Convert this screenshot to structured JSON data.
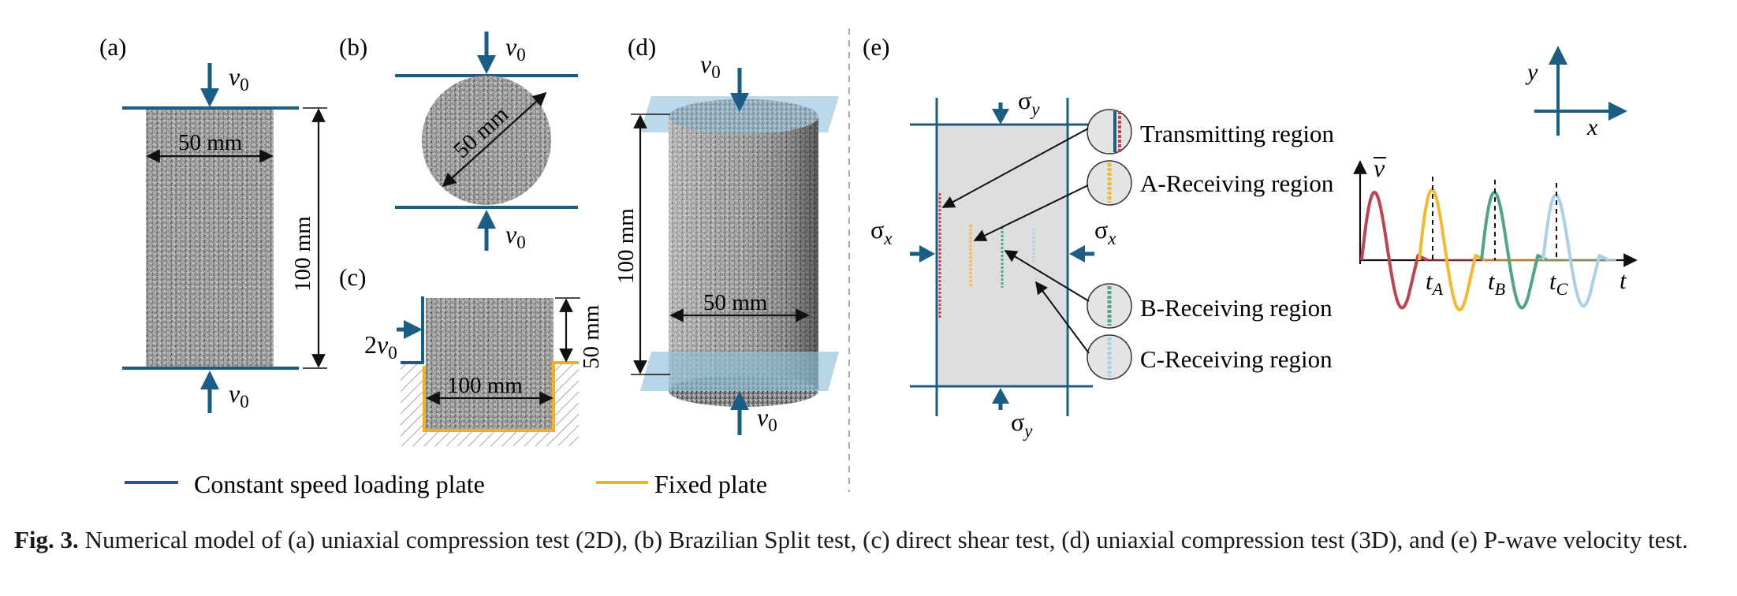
{
  "panels": {
    "a": {
      "label": "(a)",
      "top_velocity": "v",
      "top_velocity_sub": "0",
      "bottom_velocity": "v",
      "bottom_velocity_sub": "0",
      "width_dim": "50 mm",
      "height_dim": "100 mm"
    },
    "b": {
      "label": "(b)",
      "top_velocity": "v",
      "top_velocity_sub": "0",
      "bottom_velocity": "v",
      "bottom_velocity_sub": "0",
      "diameter_dim": "50 mm"
    },
    "c": {
      "label": "(c)",
      "side_velocity_coef": "2",
      "side_velocity": "v",
      "side_velocity_sub": "0",
      "width_dim": "100 mm",
      "height_dim": "50 mm"
    },
    "d": {
      "label": "(d)",
      "top_velocity": "v",
      "top_velocity_sub": "0",
      "bottom_velocity": "v",
      "bottom_velocity_sub": "0",
      "height_dim": "100 mm",
      "diameter_dim": "50 mm"
    },
    "e": {
      "label": "(e)",
      "sigma": "σ",
      "sigma_y_sub": "y",
      "sigma_x_sub": "x",
      "regions": [
        "Transmitting region",
        "A-Receiving region",
        "B-Receiving region",
        "C-Receiving region"
      ],
      "axis_x": "x",
      "axis_y": "y",
      "plot_y_label": "v",
      "plot_x_label": "t",
      "t_labels": [
        {
          "main": "t",
          "sub": "A"
        },
        {
          "main": "t",
          "sub": "B"
        },
        {
          "main": "t",
          "sub": "C"
        }
      ]
    }
  },
  "legend": {
    "loading_plate": "Constant speed loading plate",
    "fixed_plate": "Fixed plate"
  },
  "caption": {
    "label": "Fig. 3.",
    "text": " Numerical model of (a) uniaxial compression test (2D), (b) Brazilian Split test, (c) direct shear test, (d) uniaxial compression test (3D), and (e) P-wave velocity test."
  },
  "colors": {
    "plate_blue": "#1b5e85",
    "fixed_yellow": "#f2b01e",
    "wave_red": "#c0444f",
    "wave_yellow": "#f6b82c",
    "wave_green": "#4fa58b",
    "wave_lightblue": "#a9d2ea",
    "granite_light": "#d3d3d3",
    "plate_3d": "#8fc0da"
  }
}
